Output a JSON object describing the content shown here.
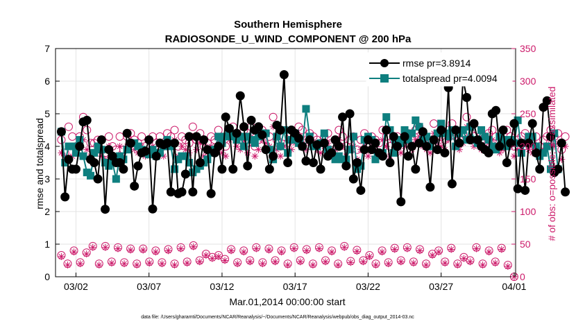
{
  "chart_data": {
    "type": "line",
    "title": "Southern Hemisphere",
    "subtitle": "RADIOSONDE_U_WIND_COMPONENT @ 200 hPa",
    "xlabel": "Mar.01,2014 00:00:00 start",
    "ylabel_left": "rmse and totalspread",
    "ylabel_right": "# of obs: o=possible; ∗=assimilated",
    "footnote": "data file: /Users/gharamti/Documents/NCAR/Reanalysis/~/Documents/NCAR/Reanalysis/webpub/obs_diag_output_2014-03.nc",
    "xlim": [
      0.6,
      32.1
    ],
    "ylim_left": [
      0,
      7
    ],
    "ylim_right": [
      0,
      350
    ],
    "x_ticks": [
      2,
      7,
      12,
      17,
      22,
      27,
      32
    ],
    "x_tick_labels": [
      "03/02",
      "03/07",
      "03/12",
      "03/17",
      "03/22",
      "03/27",
      "04/01"
    ],
    "y_ticks_left": [
      0,
      1,
      2,
      3,
      4,
      5,
      6,
      7
    ],
    "y_ticks_right": [
      0,
      50,
      100,
      150,
      200,
      250,
      300,
      350
    ],
    "legend_position": "top-right",
    "colors": {
      "rmse": "#000000",
      "totalspread": "#0e7f7f",
      "obs_count": "#cc1a6a"
    },
    "series": [
      {
        "name": "rmse pr=3.8914",
        "axis": "left",
        "marker": "circle",
        "values": [
          4.45,
          2.45,
          3.6,
          3.3,
          3.3,
          4.0,
          4.75,
          4.8,
          3.6,
          3.5,
          3.0,
          4.2,
          2.07,
          3.9,
          3.7,
          3.5,
          3.5,
          3.3,
          4.4,
          4.1,
          2.78,
          3.4,
          3.8,
          3.85,
          4.2,
          2.08,
          3.7,
          4.1,
          4.05,
          4.1,
          2.6,
          4.1,
          2.55,
          2.6,
          3.15,
          4.3,
          2.6,
          4.3,
          3.5,
          4.2,
          3.9,
          2.55,
          3.8,
          4.0,
          3.3,
          4.9,
          4.55,
          3.3,
          4.4,
          5.55,
          4.6,
          3.4,
          4.8,
          4.5,
          4.6,
          4.35,
          3.9,
          3.3,
          3.7,
          4.65,
          4.5,
          6.2,
          3.5,
          4.5,
          4.4,
          4.25,
          4.0,
          3.55,
          4.2,
          3.5,
          4.05,
          3.3,
          4.1,
          3.7,
          3.8,
          4.2,
          4.0,
          4.9,
          3.4,
          5.0,
          3.0,
          3.5,
          2.65,
          3.9,
          4.2,
          3.9,
          4.1,
          3.8,
          3.7,
          4.5,
          3.5,
          4.3,
          4.0,
          2.3,
          4.3,
          3.7,
          4.0,
          3.3,
          4.1,
          4.45,
          4.0,
          2.75,
          4.2,
          3.9,
          4.5,
          3.8,
          5.8,
          2.85,
          4.5,
          4.1,
          6.05,
          5.5,
          4.2,
          4.7,
          4.2,
          4.0,
          3.9,
          3.8,
          5.0,
          5.1,
          4.0,
          4.5,
          3.5,
          4.1,
          4.7,
          2.7,
          4.1,
          2.65,
          4.1,
          4.7,
          3.8,
          3.3,
          5.2,
          5.4,
          4.3,
          3.2,
          3.3,
          4.1,
          2.6
        ]
      },
      {
        "name": "totalspread pr=4.0094",
        "axis": "left",
        "marker": "square",
        "values": [
          4.45,
          3.5,
          4.0,
          4.0,
          3.8,
          4.2,
          3.7,
          3.2,
          3.1,
          3.8,
          4.0,
          3.9,
          3.5,
          3.4,
          3.5,
          3.0,
          3.7,
          3.6,
          3.9,
          4.1,
          4.1,
          4.0,
          3.9,
          3.8,
          3.75,
          3.9,
          3.7,
          3.8,
          4.0,
          4.2,
          4.0,
          3.3,
          3.6,
          3.7,
          3.7,
          3.5,
          3.2,
          3.3,
          3.4,
          3.5,
          3.6,
          3.8,
          3.9,
          4.3,
          4.1,
          4.3,
          4.4,
          4.3,
          4.2,
          4.3,
          4.0,
          4.3,
          4.2,
          4.1,
          4.3,
          4.4,
          4.4,
          3.9,
          3.6,
          4.3,
          4.0,
          4.5,
          3.8,
          4.2,
          4.4,
          4.1,
          4.0,
          5.15,
          4.3,
          4.0,
          4.0,
          4.1,
          4.4,
          3.9,
          3.8,
          3.6,
          3.7,
          3.6,
          3.6,
          3.9,
          4.3,
          3.3,
          3.4,
          4.2,
          4.3,
          4.2,
          3.6,
          3.8,
          3.8,
          4.9,
          4.5,
          3.8,
          4.2,
          4.1,
          4.5,
          4.2,
          4.4,
          4.8,
          4.6,
          4.2,
          4.3,
          4.0,
          4.2,
          4.4,
          4.7,
          4.4,
          4.3,
          4.5,
          4.0,
          4.4,
          4.5,
          4.2,
          4.6,
          4.2,
          4.1,
          4.5,
          4.3,
          4.2,
          4.0,
          3.9,
          4.3,
          4.2,
          4.0,
          4.2,
          4.1,
          4.8,
          3.8,
          4.1,
          4.3,
          4.3,
          4.0,
          3.7,
          3.8,
          4.0,
          3.3,
          4.4,
          3.3
        ]
      },
      {
        "name": "possible",
        "axis": "right",
        "marker": "open-circle",
        "values": [
          210,
          190,
          230,
          215,
          200,
          215,
          245,
          225,
          205,
          205,
          210,
          195,
          190,
          215,
          200,
          195,
          215,
          195,
          215,
          220,
          210,
          205,
          215,
          200,
          210,
          215,
          205,
          215,
          200,
          220,
          215,
          225,
          200,
          215,
          210,
          205,
          230,
          210,
          220,
          200,
          205,
          215,
          210,
          225,
          205,
          200,
          225,
          230,
          215,
          210,
          225,
          205,
          230,
          200,
          210,
          225,
          220,
          215,
          245,
          210,
          200,
          215,
          205,
          210,
          220,
          230,
          225,
          210,
          220,
          215,
          210,
          205,
          215,
          220,
          205,
          210,
          225,
          215,
          200,
          210,
          215,
          195,
          210,
          220,
          200,
          215,
          210,
          205,
          225,
          215,
          200,
          210,
          215,
          205,
          215,
          220,
          210,
          225,
          230,
          215,
          210,
          205,
          235,
          220,
          215,
          210,
          225,
          235,
          215,
          210,
          220,
          245,
          230,
          215,
          225,
          210,
          215,
          220,
          225,
          215,
          205,
          210,
          225,
          215,
          200,
          210,
          215,
          220,
          210,
          205,
          215,
          200,
          210,
          215,
          225,
          215,
          220,
          195,
          215
        ]
      },
      {
        "name": "assimilated",
        "axis": "right",
        "marker": "asterisk",
        "values": [
          190,
          185,
          200,
          185,
          190,
          200,
          210,
          195,
          185,
          190,
          195,
          185,
          180,
          200,
          185,
          180,
          200,
          185,
          200,
          205,
          195,
          190,
          200,
          185,
          195,
          200,
          190,
          200,
          185,
          205,
          200,
          210,
          185,
          200,
          195,
          190,
          215,
          195,
          205,
          185,
          190,
          200,
          195,
          210,
          190,
          185,
          210,
          215,
          200,
          195,
          210,
          190,
          215,
          185,
          195,
          210,
          205,
          200,
          230,
          195,
          185,
          200,
          190,
          195,
          205,
          215,
          210,
          195,
          205,
          200,
          195,
          190,
          200,
          205,
          190,
          195,
          210,
          200,
          185,
          195,
          200,
          180,
          195,
          205,
          185,
          200,
          195,
          190,
          210,
          200,
          185,
          195,
          200,
          190,
          200,
          205,
          195,
          210,
          215,
          200,
          195,
          190,
          220,
          205,
          200,
          195,
          210,
          220,
          200,
          195,
          205,
          230,
          215,
          200,
          210,
          195,
          200,
          205,
          210,
          200,
          190,
          195,
          210,
          200,
          185,
          195,
          200,
          205,
          195,
          190,
          200,
          185,
          195,
          200,
          210,
          200,
          205,
          180,
          200
        ]
      },
      {
        "name": "possible-low",
        "axis": "right",
        "marker": "open-circle",
        "values": [
          33,
          20,
          40,
          22,
          37,
          47,
          20,
          47,
          23,
          45,
          22,
          43,
          20,
          43,
          23,
          40,
          22,
          42,
          20,
          45,
          23,
          48,
          25,
          35,
          30,
          33,
          27,
          42,
          22,
          40,
          25,
          45,
          22,
          43,
          25,
          40,
          20,
          45,
          25,
          42,
          20,
          45,
          25,
          40,
          20,
          47,
          24,
          41,
          25,
          33,
          20,
          40,
          22,
          44,
          25,
          45,
          23,
          42,
          20,
          35,
          40,
          23,
          44,
          20,
          30,
          25,
          45,
          20,
          40,
          23,
          44,
          18,
          0
        ]
      },
      {
        "name": "assimilated-low",
        "axis": "right",
        "marker": "asterisk",
        "values": [
          31,
          18,
          38,
          20,
          35,
          45,
          18,
          45,
          21,
          43,
          20,
          41,
          18,
          41,
          21,
          38,
          20,
          40,
          18,
          43,
          21,
          46,
          23,
          33,
          28,
          31,
          25,
          40,
          20,
          38,
          23,
          43,
          20,
          41,
          23,
          38,
          18,
          43,
          23,
          40,
          18,
          43,
          23,
          38,
          18,
          45,
          22,
          39,
          23,
          31,
          18,
          38,
          20,
          42,
          23,
          43,
          21,
          40,
          18,
          33,
          38,
          21,
          42,
          18,
          28,
          23,
          43,
          18,
          38,
          21,
          42,
          16,
          0
        ]
      }
    ]
  }
}
